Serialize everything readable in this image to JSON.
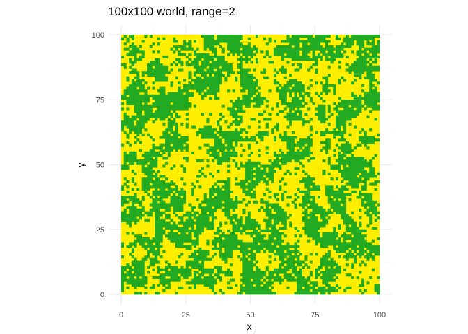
{
  "chart_data": {
    "type": "heatmap",
    "title": "100x100 world, range=2",
    "xlabel": "x",
    "ylabel": "y",
    "xlim": [
      0,
      100
    ],
    "ylim": [
      0,
      100
    ],
    "x_ticks": [
      0,
      25,
      50,
      75,
      100
    ],
    "y_ticks": [
      0,
      25,
      50,
      75,
      100
    ],
    "x_tick_labels": [
      "0",
      "25",
      "50",
      "75",
      "100"
    ],
    "y_tick_labels": [
      "0",
      "25",
      "50",
      "75",
      "100"
    ],
    "grid": true,
    "legend": "none",
    "grid_size": [
      100,
      100
    ],
    "cell_states": [
      "green",
      "yellow"
    ],
    "colors": {
      "green": "#22aa22",
      "yellow": "#ffee00",
      "grid_major": "#ebebeb",
      "grid_minor": "#f5f5f5"
    }
  }
}
